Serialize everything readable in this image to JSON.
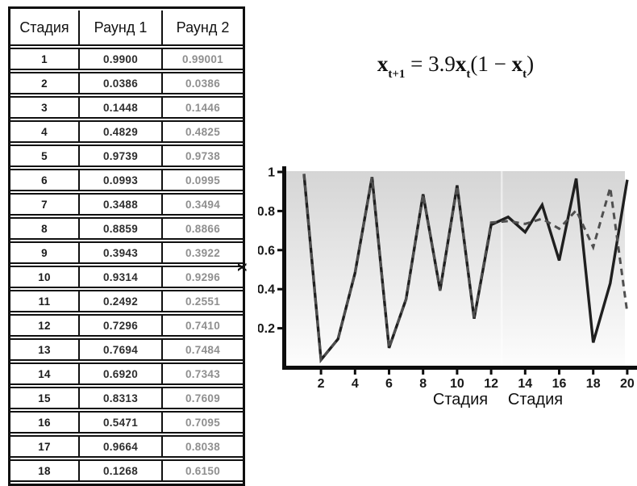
{
  "colors": {
    "border": "#101010",
    "series_solid": "#1f1f1f",
    "series_dashed": "#4f4f4f",
    "round2_text": "#8f8f8f",
    "plot_top": "#d5d5d5",
    "plot_bottom": "#fdfdfd"
  },
  "formula": {
    "x1": "x",
    "sub1": "t+1",
    "eq": " = 3.9",
    "x2": "x",
    "sub2": "t",
    "open": "(1 − ",
    "x3": "x",
    "sub3": "t",
    "close": ")"
  },
  "table": {
    "headers": [
      "Стадия",
      "Раунд 1",
      "Раунд 2"
    ],
    "rows": [
      [
        "1",
        "0.9900",
        "0.99001"
      ],
      [
        "2",
        "0.0386",
        "0.0386"
      ],
      [
        "3",
        "0.1448",
        "0.1446"
      ],
      [
        "4",
        "0.4829",
        "0.4825"
      ],
      [
        "5",
        "0.9739",
        "0.9738"
      ],
      [
        "6",
        "0.0993",
        "0.0995"
      ],
      [
        "7",
        "0.3488",
        "0.3494"
      ],
      [
        "8",
        "0.8859",
        "0.8866"
      ],
      [
        "9",
        "0.3943",
        "0.3922"
      ],
      [
        "10",
        "0.9314",
        "0.9296"
      ],
      [
        "11",
        "0.2492",
        "0.2551"
      ],
      [
        "12",
        "0.7296",
        "0.7410"
      ],
      [
        "13",
        "0.7694",
        "0.7484"
      ],
      [
        "14",
        "0.6920",
        "0.7343"
      ],
      [
        "15",
        "0.8313",
        "0.7609"
      ],
      [
        "16",
        "0.5471",
        "0.7095"
      ],
      [
        "17",
        "0.9664",
        "0.8038"
      ],
      [
        "18",
        "0.1268",
        "0.6150"
      ]
    ]
  },
  "chart_data": {
    "type": "line",
    "x": [
      1,
      2,
      3,
      4,
      5,
      6,
      7,
      8,
      9,
      10,
      11,
      12,
      13,
      14,
      15,
      16,
      17,
      18,
      19,
      20
    ],
    "series": [
      {
        "name": "Раунд 1",
        "line_style": "solid",
        "values": [
          0.99,
          0.0386,
          0.1448,
          0.4829,
          0.9739,
          0.0993,
          0.3488,
          0.8859,
          0.3943,
          0.9314,
          0.2492,
          0.7296,
          0.7694,
          0.692,
          0.8313,
          0.5471,
          0.9664,
          0.1268,
          0.43,
          0.96
        ]
      },
      {
        "name": "Раунд 2",
        "line_style": "dashed",
        "values": [
          0.99001,
          0.0386,
          0.1446,
          0.4825,
          0.9738,
          0.0995,
          0.3494,
          0.8866,
          0.3922,
          0.9296,
          0.2551,
          0.741,
          0.7484,
          0.7343,
          0.7609,
          0.7095,
          0.8038,
          0.615,
          0.92,
          0.28
        ]
      }
    ],
    "x_axis_labels": [
      "Стадия",
      "Стадия"
    ],
    "ylabel": "x",
    "x_ticks": [
      2,
      4,
      6,
      8,
      10,
      12,
      14,
      16,
      18,
      20
    ],
    "y_ticks": [
      0.2,
      0.4,
      0.6,
      0.8,
      1
    ],
    "xlim": [
      1,
      20
    ],
    "ylim": [
      0,
      1
    ],
    "grid": false,
    "legend": "none",
    "plot_background": "vertical gray-to-white gradient"
  }
}
